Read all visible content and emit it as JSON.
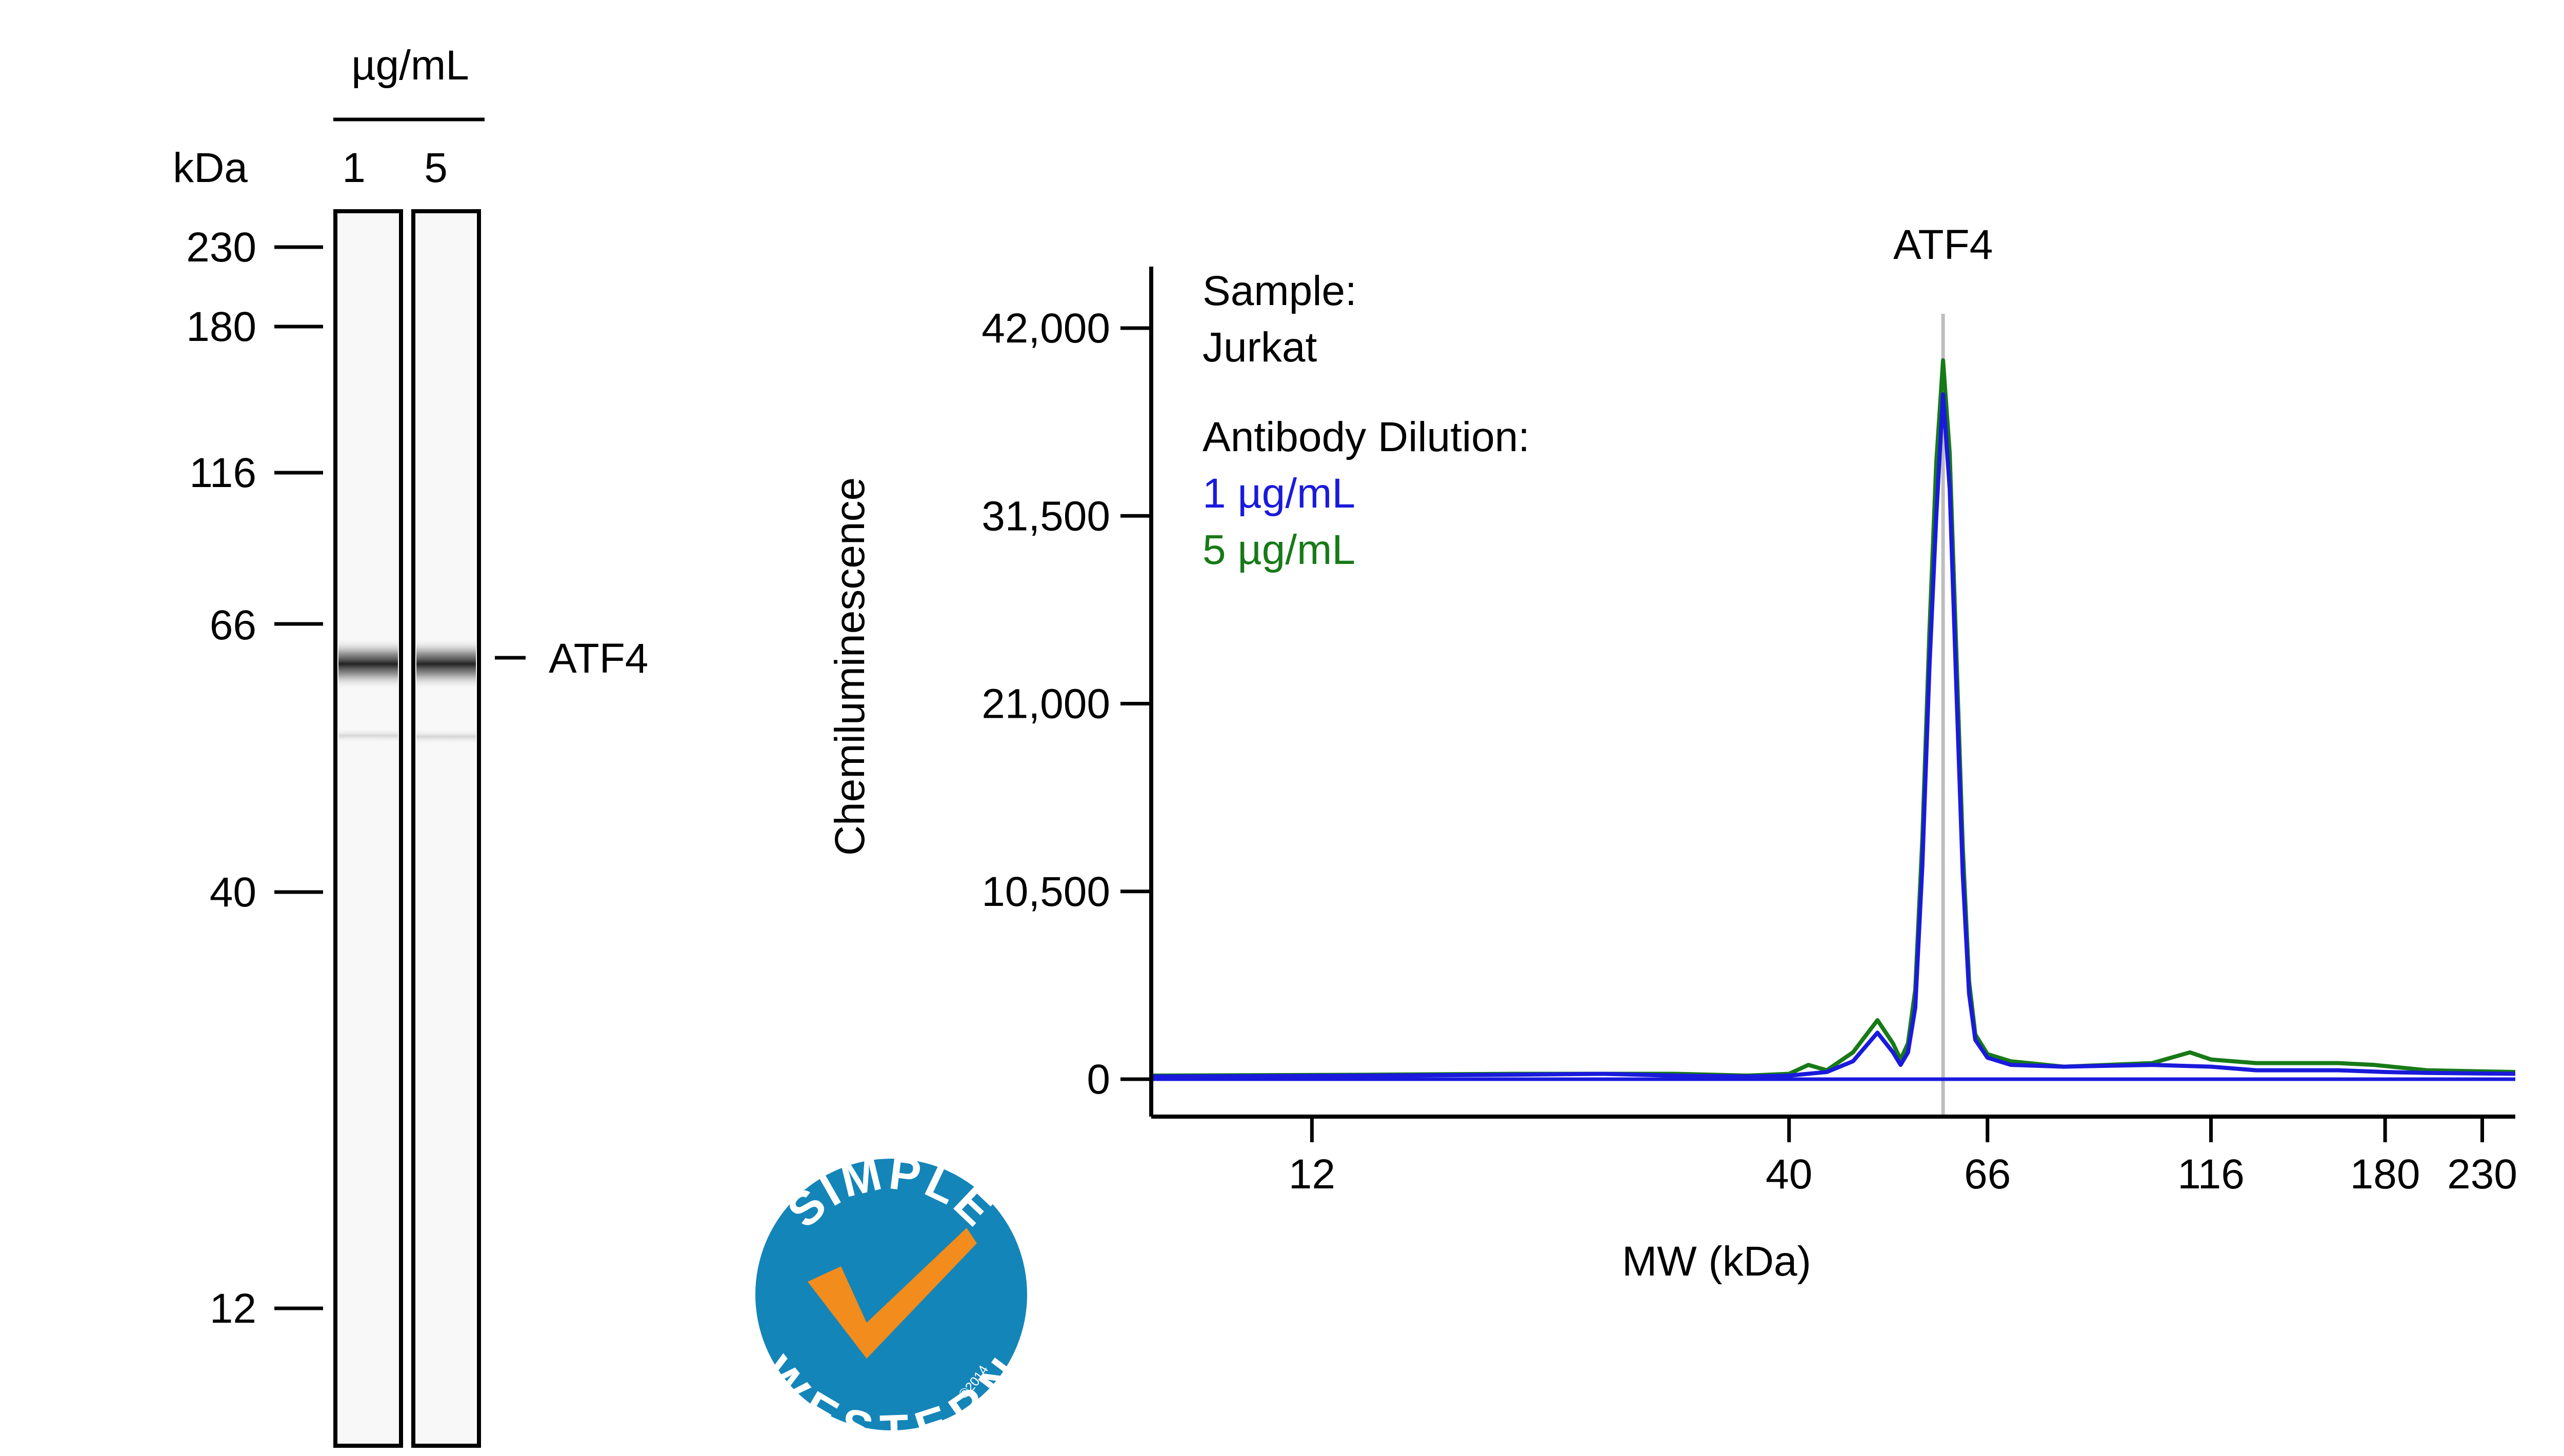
{
  "gel": {
    "unit_label": "µg/mL",
    "kda_label": "kDa",
    "lanes": [
      "1",
      "5"
    ],
    "markers": [
      "230",
      "180",
      "116",
      "66",
      "40",
      "12"
    ],
    "band_label": "ATF4"
  },
  "logo": {
    "top_text": "SIMPLE",
    "bottom_text": "WESTERN",
    "copyright": "©2014",
    "color": "#1485b8",
    "check_color": "#f28c1c"
  },
  "chart_data": {
    "type": "line",
    "title": "ATF4",
    "xlabel": "MW (kDa)",
    "ylabel": "Chemiluminescence",
    "x_scale": "log",
    "xlim": [
      8,
      250
    ],
    "ylim": [
      -1500,
      45000
    ],
    "x_ticks": [
      {
        "value": 12,
        "label": "12"
      },
      {
        "value": 40,
        "label": "40"
      },
      {
        "value": 66,
        "label": "66"
      },
      {
        "value": 116,
        "label": "116"
      },
      {
        "value": 180,
        "label": "180"
      },
      {
        "value": 230,
        "label": "230"
      }
    ],
    "y_ticks": [
      {
        "value": 0,
        "label": "0"
      },
      {
        "value": 10500,
        "label": "10,500"
      },
      {
        "value": 21000,
        "label": "21,000"
      },
      {
        "value": 31500,
        "label": "31,500"
      },
      {
        "value": 42000,
        "label": "42,000"
      }
    ],
    "peak_marker_x": 59,
    "annotations": {
      "sample_label": "Sample:",
      "sample_value": "Jurkat",
      "dilution_label": "Antibody Dilution:"
    },
    "series": [
      {
        "name": "1 µg/mL",
        "color": "#1a1adc",
        "x": [
          8,
          14,
          20,
          25,
          30,
          36,
          40,
          44,
          47,
          50,
          52,
          53,
          54,
          55,
          56,
          57,
          58,
          59,
          60,
          61,
          62,
          63,
          64,
          66,
          70,
          80,
          100,
          116,
          130,
          160,
          180,
          200,
          250
        ],
        "y": [
          150,
          200,
          250,
          300,
          200,
          150,
          200,
          400,
          1000,
          2600,
          1500,
          800,
          1500,
          4000,
          12000,
          23000,
          31500,
          38300,
          33000,
          22000,
          11500,
          4800,
          2200,
          1200,
          800,
          700,
          800,
          700,
          500,
          500,
          400,
          350,
          300
        ]
      },
      {
        "name": "5 µg/mL",
        "color": "#177a17",
        "x": [
          8,
          14,
          20,
          25,
          30,
          36,
          40,
          42,
          44,
          47,
          50,
          52,
          53,
          54,
          55,
          56,
          57,
          58,
          59,
          60,
          61,
          62,
          63,
          64,
          66,
          70,
          80,
          100,
          110,
          116,
          130,
          160,
          175,
          200,
          250
        ],
        "y": [
          200,
          250,
          300,
          300,
          300,
          200,
          300,
          800,
          500,
          1500,
          3300,
          2000,
          1100,
          2000,
          5000,
          13500,
          25000,
          34500,
          40200,
          35000,
          24000,
          13000,
          5500,
          2500,
          1400,
          1000,
          700,
          900,
          1500,
          1100,
          900,
          900,
          800,
          500,
          400
        ]
      }
    ]
  }
}
